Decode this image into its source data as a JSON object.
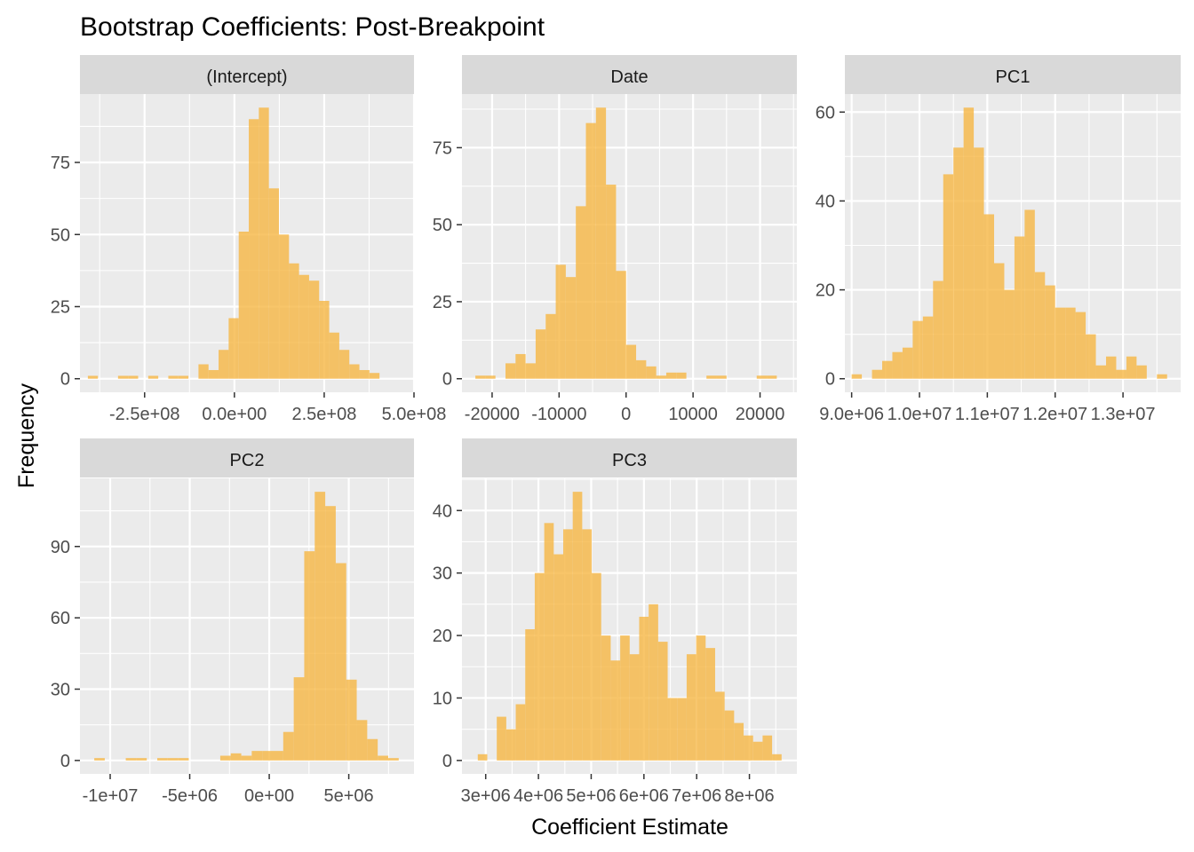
{
  "chart_data": {
    "type": "bar",
    "title": "Bootstrap Coefficients: Post-Breakpoint",
    "xlabel": "Coefficient Estimate",
    "ylabel": "Frequency",
    "bar_color": "#F6B743",
    "bar_opacity": 0.8,
    "panel_bg": "#EBEBEB",
    "strip_bg": "#D9D9D9",
    "grid_color": "#FFFFFF",
    "facets": [
      {
        "name": "(Intercept)",
        "xlim": [
          -430000000,
          500000000
        ],
        "ylim": [
          -4.7,
          98.7
        ],
        "x_ticks": [
          -250000000,
          0,
          250000000,
          500000000
        ],
        "x_tick_labels": [
          "-2.5e+08",
          "0.0e+00",
          "2.5e+08",
          "5.0e+08"
        ],
        "y_ticks": [
          0,
          25,
          50,
          75
        ],
        "y_tick_labels": [
          "0",
          "25",
          "50",
          "75"
        ],
        "bin_start": -408000000,
        "bin_width": 28000000,
        "counts": [
          1,
          0,
          0,
          1,
          1,
          0,
          1,
          0,
          1,
          1,
          0,
          5,
          3,
          10,
          21,
          51,
          90,
          94,
          66,
          50,
          40,
          36,
          34,
          27,
          16,
          10,
          5,
          3,
          2,
          0,
          0
        ]
      },
      {
        "name": "Date",
        "xlim": [
          -24500,
          25500
        ],
        "ylim": [
          -4.4,
          92.4
        ],
        "x_ticks": [
          -20000,
          -10000,
          0,
          10000,
          20000
        ],
        "x_tick_labels": [
          "-20000",
          "-10000",
          "0",
          "10000",
          "20000"
        ],
        "y_ticks": [
          0,
          25,
          50,
          75
        ],
        "y_tick_labels": [
          "0",
          "25",
          "50",
          "75"
        ],
        "bin_start": -22500,
        "bin_width": 1500,
        "counts": [
          1,
          1,
          0,
          5,
          8,
          5,
          16,
          21,
          37,
          33,
          56,
          83,
          88,
          63,
          35,
          11,
          6,
          4,
          1,
          2,
          2,
          0,
          0,
          1,
          1,
          0,
          0,
          0,
          1,
          1
        ]
      },
      {
        "name": "PC1",
        "xlim": [
          8900000,
          13850000
        ],
        "ylim": [
          -3.05,
          64.05
        ],
        "x_ticks": [
          9000000,
          10000000,
          11000000,
          12000000,
          13000000
        ],
        "x_tick_labels": [
          "9.0e+06",
          "1.0e+07",
          "1.1e+07",
          "1.2e+07",
          "1.3e+07"
        ],
        "y_ticks": [
          0,
          20,
          40,
          60
        ],
        "y_tick_labels": [
          "0",
          "20",
          "40",
          "60"
        ],
        "bin_start": 9000000,
        "bin_width": 150000,
        "counts": [
          1,
          0,
          2,
          4,
          6,
          7,
          13,
          14,
          22,
          46,
          52,
          61,
          52,
          37,
          26,
          20,
          32,
          38,
          24,
          21,
          16,
          16,
          15,
          10,
          3,
          5,
          2,
          5,
          3,
          0,
          1,
          0,
          0,
          0,
          1
        ]
      },
      {
        "name": "PC2",
        "xlim": [
          -11900000,
          9100000
        ],
        "ylim": [
          -5.65,
          118.65
        ],
        "x_ticks": [
          -10000000,
          -5000000,
          0,
          5000000
        ],
        "x_tick_labels": [
          "-1e+07",
          "-5e+06",
          "0e+00",
          "5e+06"
        ],
        "y_ticks": [
          0,
          30,
          60,
          90
        ],
        "y_tick_labels": [
          "0",
          "30",
          "60",
          "90"
        ],
        "bin_start": -11000000,
        "bin_width": 660000,
        "counts": [
          1,
          0,
          0,
          1,
          1,
          0,
          1,
          1,
          1,
          0,
          0,
          0,
          2,
          3,
          2,
          4,
          4,
          4,
          12,
          35,
          88,
          113,
          107,
          83,
          34,
          17,
          9,
          2,
          1
        ]
      },
      {
        "name": "PC3",
        "xlim": [
          2550000,
          8900000
        ],
        "ylim": [
          -2.15,
          45.15
        ],
        "x_ticks": [
          3000000,
          4000000,
          5000000,
          6000000,
          7000000,
          8000000
        ],
        "x_tick_labels": [
          "3e+06",
          "4e+06",
          "5e+06",
          "6e+06",
          "7e+06",
          "8e+06"
        ],
        "y_ticks": [
          0,
          10,
          20,
          30,
          40
        ],
        "y_tick_labels": [
          "0",
          "10",
          "20",
          "30",
          "40"
        ],
        "bin_start": 2850000,
        "bin_width": 180000,
        "counts": [
          1,
          0,
          7,
          5,
          9,
          21,
          30,
          38,
          33,
          37,
          43,
          37,
          30,
          20,
          16,
          20,
          17,
          23,
          25,
          19,
          10,
          10,
          17,
          20,
          18,
          11,
          8,
          6,
          4,
          3,
          4,
          1
        ]
      }
    ]
  }
}
